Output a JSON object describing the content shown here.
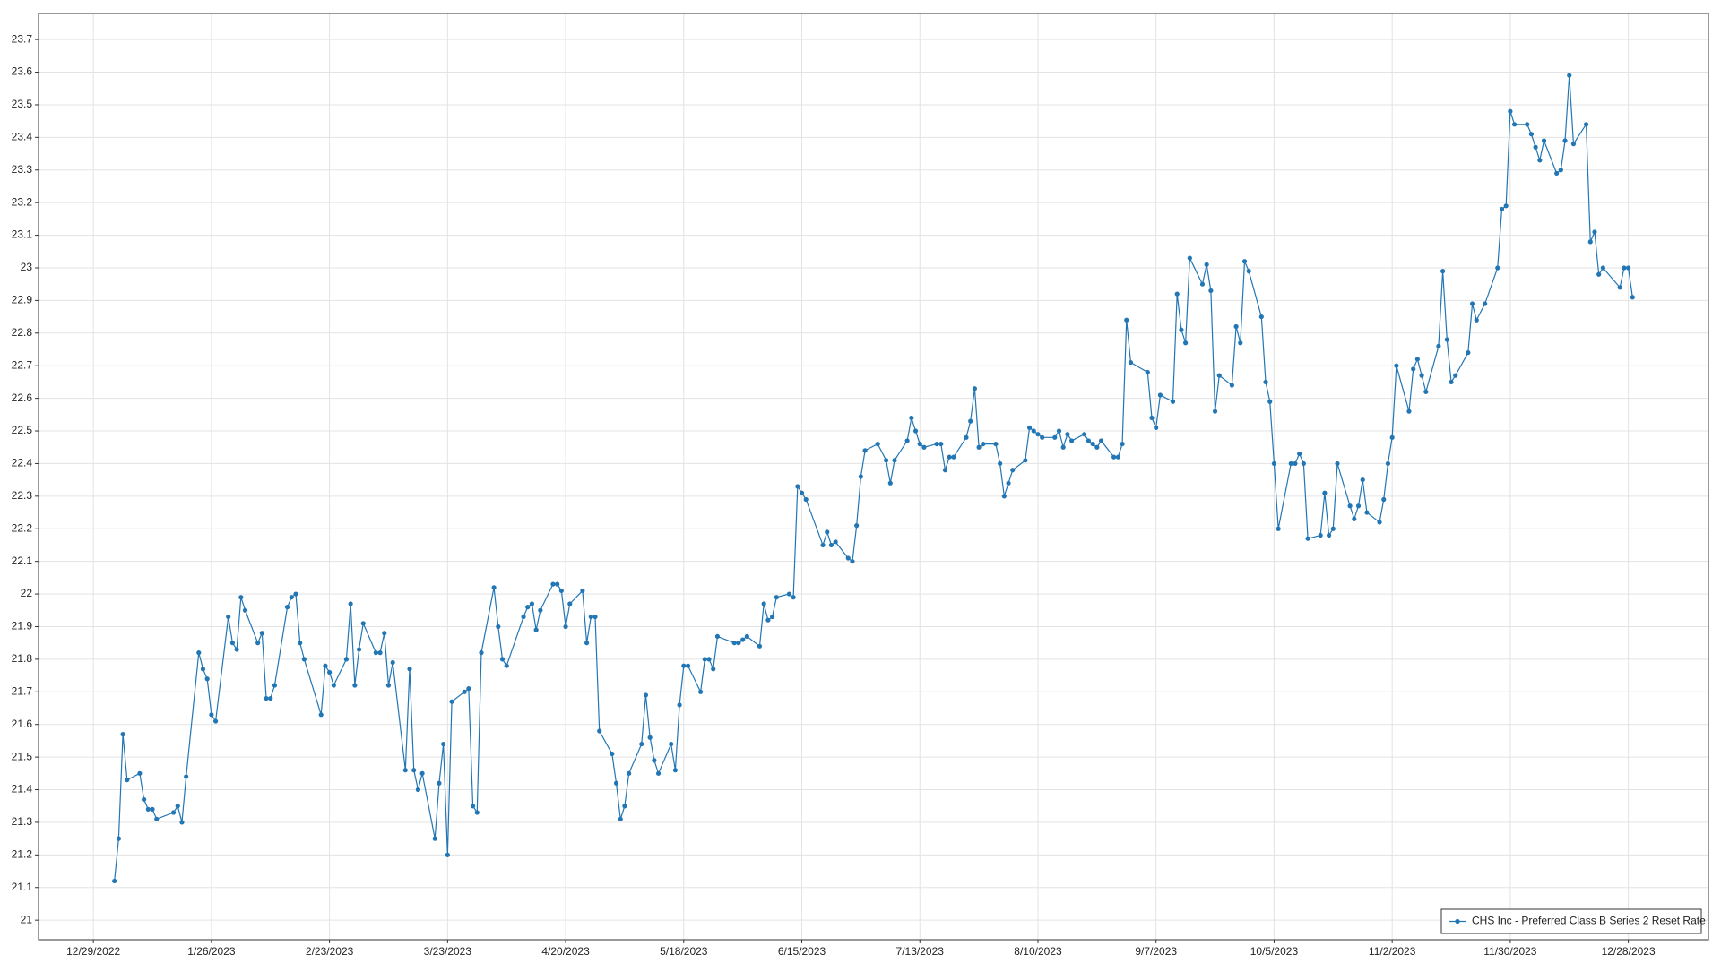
{
  "chart_data": {
    "type": "line",
    "x": [
      "2023-01-03",
      "2023-01-04",
      "2023-01-05",
      "2023-01-06",
      "2023-01-09",
      "2023-01-10",
      "2023-01-11",
      "2023-01-12",
      "2023-01-13",
      "2023-01-17",
      "2023-01-18",
      "2023-01-19",
      "2023-01-20",
      "2023-01-23",
      "2023-01-24",
      "2023-01-25",
      "2023-01-26",
      "2023-01-27",
      "2023-01-30",
      "2023-01-31",
      "2023-02-01",
      "2023-02-02",
      "2023-02-03",
      "2023-02-06",
      "2023-02-07",
      "2023-02-08",
      "2023-02-09",
      "2023-02-10",
      "2023-02-13",
      "2023-02-14",
      "2023-02-15",
      "2023-02-16",
      "2023-02-17",
      "2023-02-21",
      "2023-02-22",
      "2023-02-23",
      "2023-02-24",
      "2023-02-27",
      "2023-02-28",
      "2023-03-01",
      "2023-03-02",
      "2023-03-03",
      "2023-03-06",
      "2023-03-07",
      "2023-03-08",
      "2023-03-09",
      "2023-03-10",
      "2023-03-13",
      "2023-03-14",
      "2023-03-15",
      "2023-03-16",
      "2023-03-17",
      "2023-03-20",
      "2023-03-21",
      "2023-03-22",
      "2023-03-23",
      "2023-03-24",
      "2023-03-27",
      "2023-03-28",
      "2023-03-29",
      "2023-03-30",
      "2023-03-31",
      "2023-04-03",
      "2023-04-04",
      "2023-04-05",
      "2023-04-06",
      "2023-04-10",
      "2023-04-11",
      "2023-04-12",
      "2023-04-13",
      "2023-04-14",
      "2023-04-17",
      "2023-04-18",
      "2023-04-19",
      "2023-04-20",
      "2023-04-21",
      "2023-04-24",
      "2023-04-25",
      "2023-04-26",
      "2023-04-27",
      "2023-04-28",
      "2023-05-01",
      "2023-05-02",
      "2023-05-03",
      "2023-05-04",
      "2023-05-05",
      "2023-05-08",
      "2023-05-09",
      "2023-05-10",
      "2023-05-11",
      "2023-05-12",
      "2023-05-15",
      "2023-05-16",
      "2023-05-17",
      "2023-05-18",
      "2023-05-19",
      "2023-05-22",
      "2023-05-23",
      "2023-05-24",
      "2023-05-25",
      "2023-05-26",
      "2023-05-30",
      "2023-05-31",
      "2023-06-01",
      "2023-06-02",
      "2023-06-05",
      "2023-06-06",
      "2023-06-07",
      "2023-06-08",
      "2023-06-09",
      "2023-06-12",
      "2023-06-13",
      "2023-06-14",
      "2023-06-15",
      "2023-06-16",
      "2023-06-20",
      "2023-06-21",
      "2023-06-22",
      "2023-06-23",
      "2023-06-26",
      "2023-06-27",
      "2023-06-28",
      "2023-06-29",
      "2023-06-30",
      "2023-07-03",
      "2023-07-05",
      "2023-07-06",
      "2023-07-07",
      "2023-07-10",
      "2023-07-11",
      "2023-07-12",
      "2023-07-13",
      "2023-07-14",
      "2023-07-17",
      "2023-07-18",
      "2023-07-19",
      "2023-07-20",
      "2023-07-21",
      "2023-07-24",
      "2023-07-25",
      "2023-07-26",
      "2023-07-27",
      "2023-07-28",
      "2023-07-31",
      "2023-08-01",
      "2023-08-02",
      "2023-08-03",
      "2023-08-04",
      "2023-08-07",
      "2023-08-08",
      "2023-08-09",
      "2023-08-10",
      "2023-08-11",
      "2023-08-14",
      "2023-08-15",
      "2023-08-16",
      "2023-08-17",
      "2023-08-18",
      "2023-08-21",
      "2023-08-22",
      "2023-08-23",
      "2023-08-24",
      "2023-08-25",
      "2023-08-28",
      "2023-08-29",
      "2023-08-30",
      "2023-08-31",
      "2023-09-01",
      "2023-09-05",
      "2023-09-06",
      "2023-09-07",
      "2023-09-08",
      "2023-09-11",
      "2023-09-12",
      "2023-09-13",
      "2023-09-14",
      "2023-09-15",
      "2023-09-18",
      "2023-09-19",
      "2023-09-20",
      "2023-09-21",
      "2023-09-22",
      "2023-09-25",
      "2023-09-26",
      "2023-09-27",
      "2023-09-28",
      "2023-09-29",
      "2023-10-02",
      "2023-10-03",
      "2023-10-04",
      "2023-10-05",
      "2023-10-06",
      "2023-10-09",
      "2023-10-10",
      "2023-10-11",
      "2023-10-12",
      "2023-10-13",
      "2023-10-16",
      "2023-10-17",
      "2023-10-18",
      "2023-10-19",
      "2023-10-20",
      "2023-10-23",
      "2023-10-24",
      "2023-10-25",
      "2023-10-26",
      "2023-10-27",
      "2023-10-30",
      "2023-10-31",
      "2023-11-01",
      "2023-11-02",
      "2023-11-03",
      "2023-11-06",
      "2023-11-07",
      "2023-11-08",
      "2023-11-09",
      "2023-11-10",
      "2023-11-13",
      "2023-11-14",
      "2023-11-15",
      "2023-11-16",
      "2023-11-17",
      "2023-11-20",
      "2023-11-21",
      "2023-11-22",
      "2023-11-24",
      "2023-11-27",
      "2023-11-28",
      "2023-11-29",
      "2023-11-30",
      "2023-12-01",
      "2023-12-04",
      "2023-12-05",
      "2023-12-06",
      "2023-12-07",
      "2023-12-08",
      "2023-12-11",
      "2023-12-12",
      "2023-12-13",
      "2023-12-14",
      "2023-12-15",
      "2023-12-18",
      "2023-12-19",
      "2023-12-20",
      "2023-12-21",
      "2023-12-22",
      "2023-12-26",
      "2023-12-27",
      "2023-12-28",
      "2023-12-29"
    ],
    "series": [
      {
        "name": "CHS Inc - Preferred Class B Series 2 Reset Rate",
        "color": "#2276b4",
        "values": [
          21.12,
          21.25,
          21.57,
          21.43,
          21.45,
          21.37,
          21.34,
          21.34,
          21.31,
          21.33,
          21.35,
          21.3,
          21.44,
          21.82,
          21.77,
          21.74,
          21.63,
          21.61,
          21.93,
          21.85,
          21.83,
          21.99,
          21.95,
          21.85,
          21.88,
          21.68,
          21.68,
          21.72,
          21.96,
          21.99,
          22.0,
          21.85,
          21.8,
          21.63,
          21.78,
          21.76,
          21.72,
          21.8,
          21.97,
          21.72,
          21.83,
          21.91,
          21.82,
          21.82,
          21.88,
          21.72,
          21.79,
          21.46,
          21.77,
          21.46,
          21.4,
          21.45,
          21.25,
          21.42,
          21.54,
          21.2,
          21.67,
          21.7,
          21.71,
          21.35,
          21.33,
          21.82,
          22.02,
          21.9,
          21.8,
          21.78,
          21.93,
          21.96,
          21.97,
          21.89,
          21.95,
          22.03,
          22.03,
          22.01,
          21.9,
          21.97,
          22.01,
          21.85,
          21.93,
          21.93,
          21.58,
          21.51,
          21.42,
          21.31,
          21.35,
          21.45,
          21.54,
          21.69,
          21.56,
          21.49,
          21.45,
          21.54,
          21.46,
          21.66,
          21.78,
          21.78,
          21.7,
          21.8,
          21.8,
          21.77,
          21.87,
          21.85,
          21.85,
          21.86,
          21.87,
          21.84,
          21.97,
          21.92,
          21.93,
          21.99,
          22.0,
          21.99,
          22.33,
          22.31,
          22.29,
          22.15,
          22.19,
          22.15,
          22.16,
          22.11,
          22.1,
          22.21,
          22.36,
          22.44,
          22.46,
          22.41,
          22.34,
          22.41,
          22.47,
          22.54,
          22.5,
          22.46,
          22.45,
          22.46,
          22.46,
          22.38,
          22.42,
          22.42,
          22.48,
          22.53,
          22.63,
          22.45,
          22.46,
          22.46,
          22.4,
          22.3,
          22.34,
          22.38,
          22.41,
          22.51,
          22.5,
          22.49,
          22.48,
          22.48,
          22.5,
          22.45,
          22.49,
          22.47,
          22.49,
          22.47,
          22.46,
          22.45,
          22.47,
          22.42,
          22.42,
          22.46,
          22.84,
          22.71,
          22.68,
          22.54,
          22.51,
          22.61,
          22.59,
          22.92,
          22.81,
          22.77,
          23.03,
          22.95,
          23.01,
          22.93,
          22.56,
          22.67,
          22.64,
          22.82,
          22.77,
          23.02,
          22.99,
          22.85,
          22.65,
          22.59,
          22.4,
          22.2,
          22.4,
          22.4,
          22.43,
          22.4,
          22.17,
          22.18,
          22.31,
          22.18,
          22.2,
          22.4,
          22.27,
          22.23,
          22.27,
          22.35,
          22.25,
          22.22,
          22.29,
          22.4,
          22.48,
          22.7,
          22.56,
          22.69,
          22.72,
          22.67,
          22.62,
          22.76,
          22.99,
          22.78,
          22.65,
          22.67,
          22.74,
          22.89,
          22.84,
          22.89,
          23.0,
          23.18,
          23.19,
          23.48,
          23.44,
          23.44,
          23.41,
          23.37,
          23.33,
          23.39,
          23.29,
          23.3,
          23.39,
          23.59,
          23.38,
          23.44,
          23.08,
          23.11,
          22.98,
          23.0,
          22.94,
          23.0,
          23.0,
          22.91
        ]
      }
    ],
    "xlim": [
      "2022-12-16",
      "2024-01-16"
    ],
    "xticks": [
      {
        "value": "2022-12-29",
        "label": "12/29/2022"
      },
      {
        "value": "2023-01-26",
        "label": "1/26/2023"
      },
      {
        "value": "2023-02-23",
        "label": "2/23/2023"
      },
      {
        "value": "2023-03-23",
        "label": "3/23/2023"
      },
      {
        "value": "2023-04-20",
        "label": "4/20/2023"
      },
      {
        "value": "2023-05-18",
        "label": "5/18/2023"
      },
      {
        "value": "2023-06-15",
        "label": "6/15/2023"
      },
      {
        "value": "2023-07-13",
        "label": "7/13/2023"
      },
      {
        "value": "2023-08-10",
        "label": "8/10/2023"
      },
      {
        "value": "2023-09-07",
        "label": "9/7/2023"
      },
      {
        "value": "2023-10-05",
        "label": "10/5/2023"
      },
      {
        "value": "2023-11-02",
        "label": "11/2/2023"
      },
      {
        "value": "2023-11-30",
        "label": "11/30/2023"
      },
      {
        "value": "2023-12-28",
        "label": "12/28/2023"
      }
    ],
    "ylim": [
      20.94,
      23.78
    ],
    "yticks": [
      21,
      21.1,
      21.2,
      21.3,
      21.4,
      21.5,
      21.6,
      21.7,
      21.8,
      21.9,
      22,
      22.1,
      22.2,
      22.3,
      22.4,
      22.5,
      22.6,
      22.7,
      22.8,
      22.9,
      23,
      23.1,
      23.2,
      23.3,
      23.4,
      23.5,
      23.6,
      23.7
    ],
    "grid": true,
    "legend": "lower-right"
  }
}
